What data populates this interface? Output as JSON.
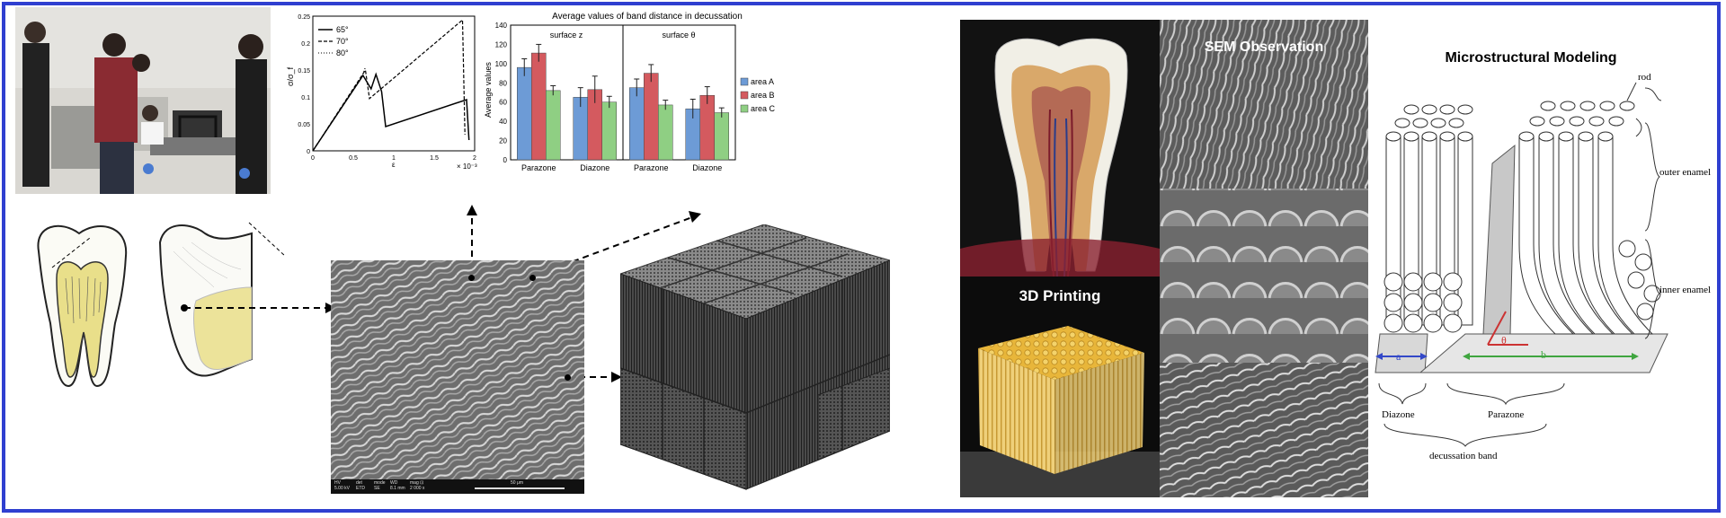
{
  "colors": {
    "frame": "#2f3fd0",
    "bar_area_a": "#6d9bd6",
    "bar_area_b": "#d45a5f",
    "bar_area_c": "#8fcf83",
    "dentin_yellow": "#e7de8a",
    "print_yellow": "#e8b63a",
    "modeling_arrow_blue": "#3348c8",
    "modeling_arrow_green": "#3fa53f",
    "modeling_arrow_red": "#cc3333"
  },
  "icons": [
    "lab-photo",
    "tooth-sketch",
    "sem-micrograph",
    "cube-model",
    "tooth-cross-section",
    "printed-cube",
    "rod-model"
  ],
  "stress_chart": {
    "legend": [
      "65°",
      "70°",
      "80°"
    ],
    "ylabel": "σ/σ_f",
    "xlabel": "ε",
    "x_multiplier": "× 10⁻³",
    "x_ticks": [
      "0",
      "0.5",
      "1",
      "1.5",
      "2"
    ],
    "y_ticks": [
      "0",
      "0.05",
      "0.1",
      "0.15",
      "0.2",
      "0.25"
    ]
  },
  "bar_chart": {
    "title": "Average values of band distance in decussation",
    "ylabel": "Average values",
    "panels": [
      "surface z",
      "surface θ"
    ],
    "categories": [
      "Parazone",
      "Diazone",
      "Parazone",
      "Diazone"
    ],
    "y_ticks": [
      "0",
      "20",
      "40",
      "60",
      "80",
      "100",
      "120",
      "140"
    ],
    "legend": [
      "area A",
      "area B",
      "area C"
    ]
  },
  "sem_scalebar": {
    "headers": [
      "HV",
      "det",
      "mode",
      "WD",
      "mag ⊡"
    ],
    "values": [
      "5.00 kV",
      "ETD",
      "SE",
      "8.1 mm",
      "2 000 x"
    ],
    "scale": "50 μm"
  },
  "right_panel": {
    "sem_title": "SEM Observation",
    "printing_title": "3D Printing",
    "modeling_title": "Microstructural Modeling",
    "labels": {
      "rod": "rod",
      "outer": "outer enamel",
      "inner": "inner enamel",
      "diazone": "Diazone",
      "parazone": "Parazone",
      "band": "decussation band",
      "a": "a",
      "b": "b",
      "theta": "θ"
    }
  },
  "chart_data": [
    {
      "type": "line",
      "title": "",
      "xlabel": "ε",
      "ylabel": "σ/σ_f",
      "xlim": [
        0,
        2
      ],
      "ylim": [
        0,
        0.25
      ],
      "series": [
        {
          "name": "65°",
          "x": [
            0,
            0.62,
            0.72,
            0.78,
            0.85,
            0.9,
            1.9,
            1.93
          ],
          "y": [
            0,
            0.14,
            0.115,
            0.142,
            0.11,
            0.045,
            0.095,
            0.02
          ]
        },
        {
          "name": "70°",
          "x": [
            0,
            0.65,
            0.7,
            1.85,
            1.88
          ],
          "y": [
            0,
            0.15,
            0.097,
            0.243,
            0.03
          ]
        },
        {
          "name": "80°",
          "x": [
            0,
            0.6,
            0.65
          ],
          "y": [
            0,
            0.135,
            0.155
          ]
        }
      ]
    },
    {
      "type": "bar",
      "title": "Average values of band distance in decussation",
      "ylabel": "Average values",
      "ylim": [
        0,
        140
      ],
      "categories": [
        "Parazone",
        "Diazone",
        "Parazone",
        "Diazone"
      ],
      "series": [
        {
          "name": "area A",
          "values": [
            96,
            65,
            75,
            53
          ],
          "errors": [
            9,
            10,
            9,
            10
          ]
        },
        {
          "name": "area B",
          "values": [
            111,
            73,
            90,
            67
          ],
          "errors": [
            9,
            14,
            9,
            9
          ]
        },
        {
          "name": "area C",
          "values": [
            72,
            60,
            57,
            49
          ],
          "errors": [
            5,
            6,
            5,
            5
          ]
        }
      ]
    }
  ]
}
